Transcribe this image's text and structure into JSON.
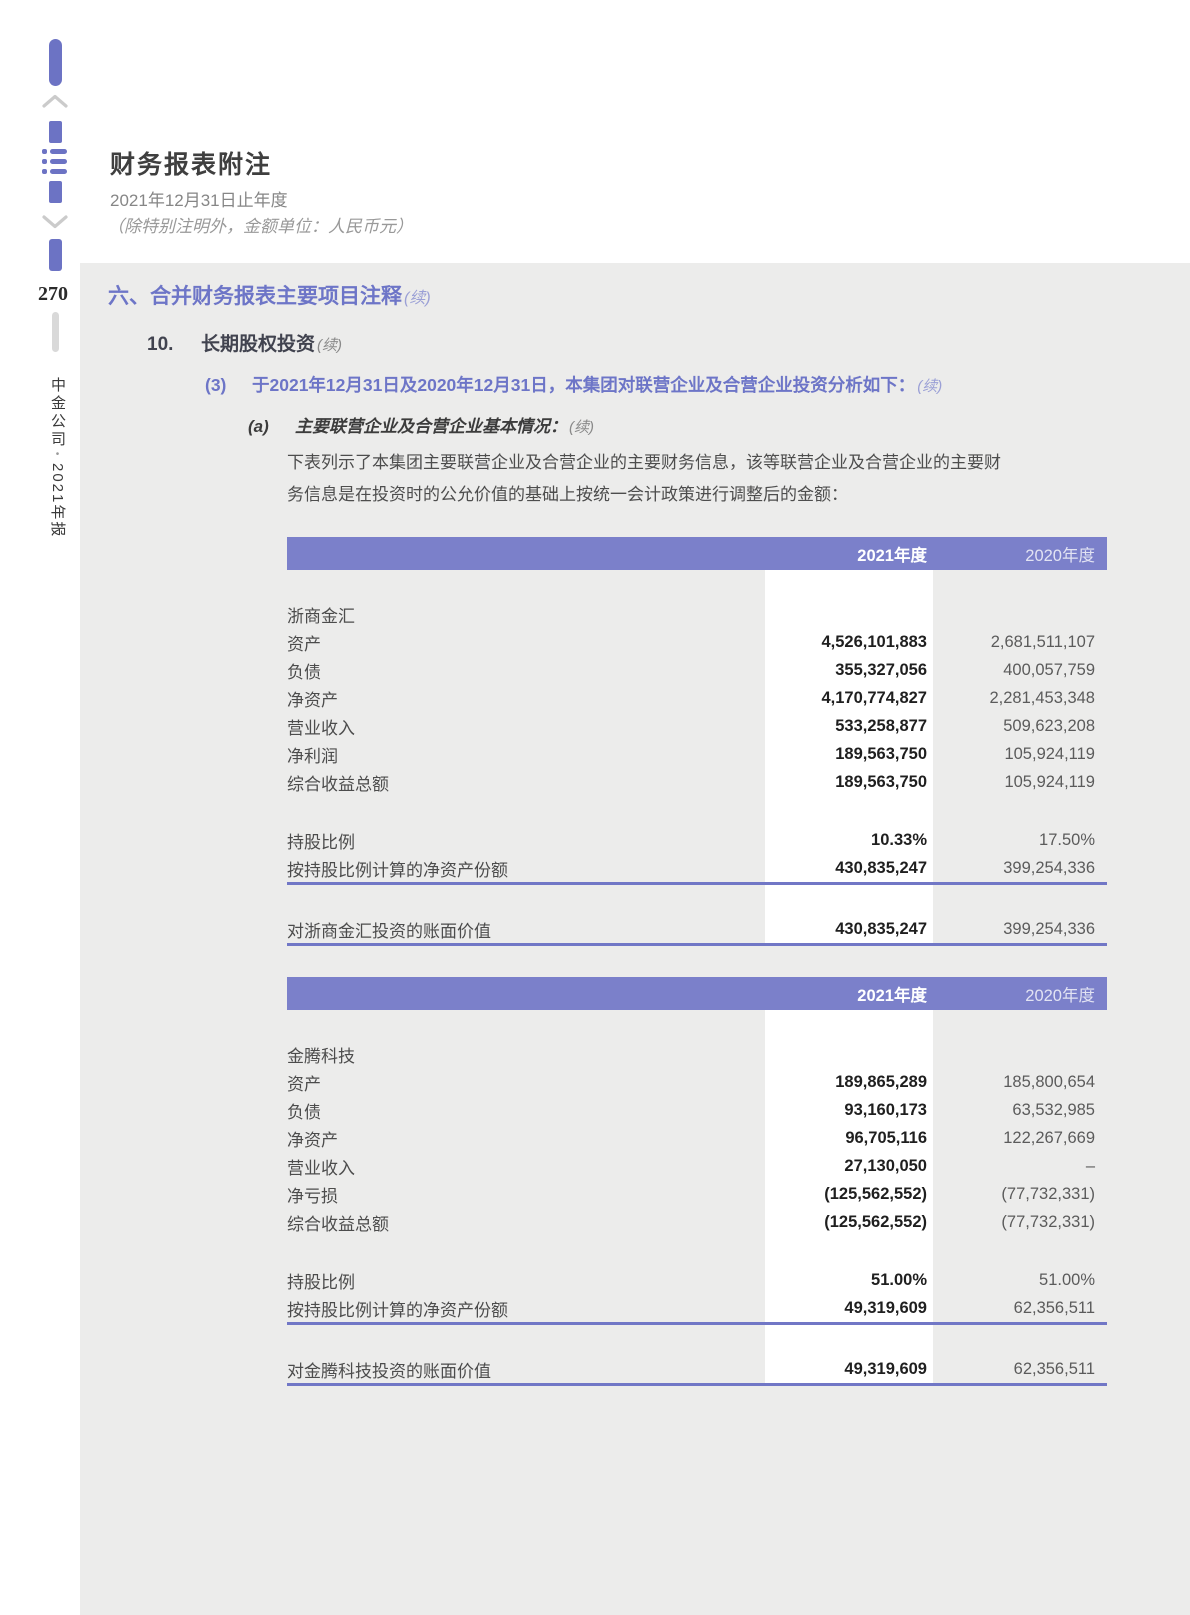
{
  "sidebar": {
    "page_number": "270",
    "brand": "中金公司",
    "separator": "•",
    "year_label": "2021年报",
    "icons": [
      "bookmark-bar",
      "chevron-up",
      "section-bar",
      "menu",
      "section-bar",
      "chevron-down",
      "bookmark-bar"
    ]
  },
  "header": {
    "title": "财务报表附注",
    "period": "2021年12月31日止年度",
    "unit_note": "（除特别注明外，金额单位：人民币元）"
  },
  "section": {
    "no": "六、",
    "title": "合并财务报表主要项目注释",
    "cont": "(续)"
  },
  "item10": {
    "no": "10.",
    "title": "长期股权投资",
    "cont": "(续)"
  },
  "item3": {
    "no": "(3)",
    "text": "于2021年12月31日及2020年12月31日，本集团对联营企业及合营企业投资分析如下：",
    "cont": "(续)"
  },
  "itemA": {
    "no": "(a)",
    "text": "主要联营企业及合营企业基本情况：",
    "cont": "(续)"
  },
  "paragraph": {
    "line1": "下表列示了本集团主要联营企业及合营企业的主要财务信息，该等联营企业及合营企业的主要财",
    "line2": "务信息是在投资时的公允价值的基础上按统一会计政策进行调整后的金额："
  },
  "columns": {
    "y2021": "2021年度",
    "y2020": "2020年度"
  },
  "colors": {
    "header_purple": "#7b80ca",
    "rule_blue": "#7177c6",
    "panel_gray": "#ececeb",
    "sidebar_purple": "#6c73c4",
    "heading_purple": "#6d75c7"
  },
  "tables": [
    {
      "company": "浙商金汇",
      "rows": [
        {
          "kind": "spacer"
        },
        {
          "kind": "company",
          "label": "浙商金汇"
        },
        {
          "kind": "data",
          "label": "资产",
          "y2021": "4,526,101,883",
          "y2020": "2,681,511,107"
        },
        {
          "kind": "data",
          "label": "负债",
          "y2021": "355,327,056",
          "y2020": "400,057,759"
        },
        {
          "kind": "data",
          "label": "净资产",
          "y2021": "4,170,774,827",
          "y2020": "2,281,453,348"
        },
        {
          "kind": "data",
          "label": "营业收入",
          "y2021": "533,258,877",
          "y2020": "509,623,208"
        },
        {
          "kind": "data",
          "label": "净利润",
          "y2021": "189,563,750",
          "y2020": "105,924,119"
        },
        {
          "kind": "data",
          "label": "综合收益总额",
          "y2021": "189,563,750",
          "y2020": "105,924,119"
        },
        {
          "kind": "spacer"
        },
        {
          "kind": "data",
          "label": "持股比例",
          "y2021": "10.33%",
          "y2020": "17.50%"
        },
        {
          "kind": "data",
          "label": "按持股比例计算的净资产份额",
          "y2021": "430,835,247",
          "y2020": "399,254,336"
        },
        {
          "kind": "rule"
        },
        {
          "kind": "spacer"
        },
        {
          "kind": "data",
          "label": "对浙商金汇投资的账面价值",
          "y2021": "430,835,247",
          "y2020": "399,254,336"
        },
        {
          "kind": "rule"
        }
      ]
    },
    {
      "company": "金腾科技",
      "rows": [
        {
          "kind": "spacer"
        },
        {
          "kind": "company",
          "label": "金腾科技"
        },
        {
          "kind": "data",
          "label": "资产",
          "y2021": "189,865,289",
          "y2020": "185,800,654"
        },
        {
          "kind": "data",
          "label": "负债",
          "y2021": "93,160,173",
          "y2020": "63,532,985"
        },
        {
          "kind": "data",
          "label": "净资产",
          "y2021": "96,705,116",
          "y2020": "122,267,669"
        },
        {
          "kind": "data",
          "label": "营业收入",
          "y2021": "27,130,050",
          "y2020": "–"
        },
        {
          "kind": "data",
          "label": "净亏损",
          "y2021": "(125,562,552)",
          "y2020": "(77,732,331)"
        },
        {
          "kind": "data",
          "label": "综合收益总额",
          "y2021": "(125,562,552)",
          "y2020": "(77,732,331)"
        },
        {
          "kind": "spacer"
        },
        {
          "kind": "data",
          "label": "持股比例",
          "y2021": "51.00%",
          "y2020": "51.00%"
        },
        {
          "kind": "data",
          "label": "按持股比例计算的净资产份额",
          "y2021": "49,319,609",
          "y2020": "62,356,511"
        },
        {
          "kind": "rule"
        },
        {
          "kind": "spacer"
        },
        {
          "kind": "data",
          "label": "对金腾科技投资的账面价值",
          "y2021": "49,319,609",
          "y2020": "62,356,511"
        },
        {
          "kind": "rule"
        }
      ]
    }
  ]
}
